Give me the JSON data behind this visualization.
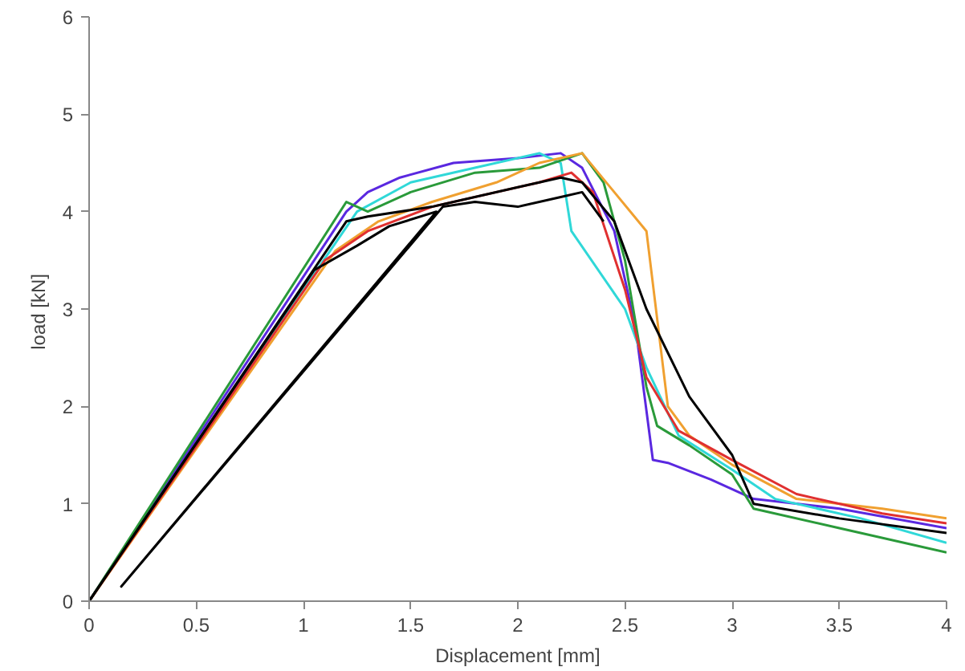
{
  "chart_data": {
    "type": "line",
    "xlabel": "Displacement [mm]",
    "ylabel": "load  [kN]",
    "xlim": [
      0,
      4
    ],
    "ylim": [
      0,
      6
    ],
    "xticks": [
      0,
      0.5,
      1,
      1.5,
      2,
      2.5,
      3,
      3.5,
      4
    ],
    "yticks": [
      0,
      1,
      2,
      3,
      4,
      5,
      6
    ],
    "grid": false,
    "marker": "none",
    "line_style": "solid",
    "series": [
      {
        "color": "#5a28e0",
        "x": [
          0,
          1.2,
          1.3,
          1.45,
          1.7,
          2.0,
          2.2,
          2.3,
          2.45,
          2.55,
          2.63,
          2.7,
          2.9,
          3.1,
          3.5,
          4
        ],
        "values": [
          0,
          4.0,
          4.2,
          4.35,
          4.5,
          4.55,
          4.6,
          4.45,
          3.8,
          2.8,
          1.45,
          1.42,
          1.25,
          1.05,
          0.95,
          0.75
        ]
      },
      {
        "color": "#30d8d8",
        "x": [
          0,
          1.25,
          1.5,
          1.8,
          2.1,
          2.2,
          2.25,
          2.5,
          2.6,
          2.75,
          3.0,
          3.2,
          3.6,
          4
        ],
        "values": [
          0,
          4.0,
          4.3,
          4.45,
          4.6,
          4.5,
          3.8,
          3.0,
          2.4,
          1.7,
          1.35,
          1.05,
          0.85,
          0.6
        ]
      },
      {
        "color": "#2a9a3a",
        "x": [
          0,
          1.2,
          1.3,
          1.5,
          1.8,
          2.1,
          2.3,
          2.4,
          2.5,
          2.6,
          2.65,
          2.8,
          3.0,
          3.1,
          3.5,
          4
        ],
        "values": [
          0,
          4.1,
          4.0,
          4.2,
          4.4,
          4.45,
          4.6,
          4.3,
          3.5,
          2.2,
          1.8,
          1.6,
          1.3,
          0.95,
          0.75,
          0.5
        ]
      },
      {
        "color": "#f0a030",
        "x": [
          0,
          1.15,
          1.35,
          1.6,
          1.9,
          2.1,
          2.3,
          2.45,
          2.6,
          2.7,
          2.8,
          3.0,
          3.3,
          3.7,
          4
        ],
        "values": [
          0,
          3.6,
          3.9,
          4.1,
          4.3,
          4.5,
          4.6,
          4.2,
          3.8,
          2.0,
          1.7,
          1.4,
          1.05,
          0.95,
          0.85
        ]
      },
      {
        "color": "#e03030",
        "x": [
          0,
          1.1,
          1.3,
          1.6,
          1.9,
          2.1,
          2.25,
          2.35,
          2.5,
          2.6,
          2.75,
          3.0,
          3.3,
          3.7,
          4
        ],
        "values": [
          0,
          3.5,
          3.8,
          4.05,
          4.2,
          4.3,
          4.4,
          4.2,
          3.2,
          2.3,
          1.75,
          1.45,
          1.1,
          0.9,
          0.8
        ]
      },
      {
        "color": "#000000",
        "x": [
          0,
          1.2,
          1.3,
          1.6,
          2.0,
          2.2,
          2.3,
          2.45,
          2.6,
          2.8,
          3.0,
          3.1,
          3.5,
          4
        ],
        "values": [
          0,
          3.9,
          3.95,
          4.05,
          4.25,
          4.35,
          4.3,
          3.9,
          3.0,
          2.1,
          1.5,
          1.0,
          0.85,
          0.7
        ]
      },
      {
        "color": "#000000",
        "x": [
          0,
          1.05,
          1.25,
          1.4,
          1.62,
          0.15,
          1.65,
          1.8,
          2.0,
          2.2,
          2.3,
          2.4
        ],
        "values": [
          0,
          3.4,
          3.65,
          3.85,
          4.0,
          0.15,
          4.05,
          4.1,
          4.05,
          4.15,
          4.2,
          3.9
        ]
      }
    ]
  }
}
